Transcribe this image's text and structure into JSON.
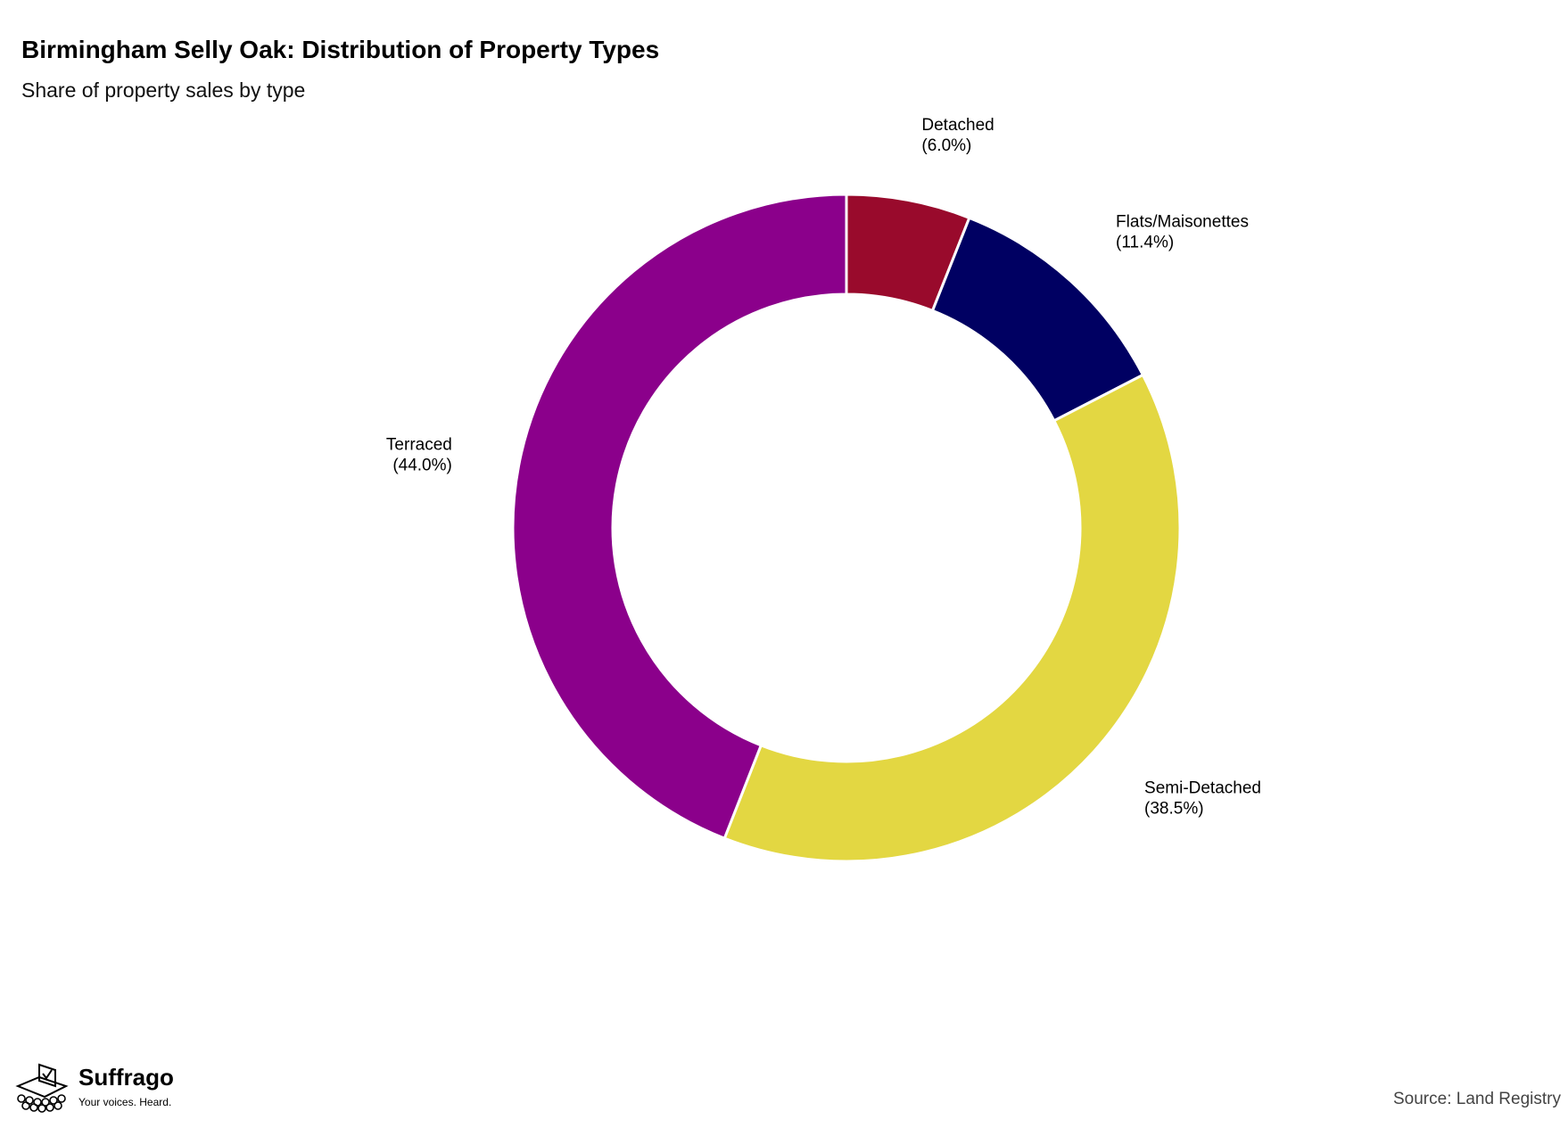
{
  "chart_data": {
    "type": "pie",
    "title": "Birmingham Selly Oak: Distribution of Property Types",
    "subtitle": "Share of property sales by type",
    "categories": [
      "Detached",
      "Flats/Maisonettes",
      "Semi-Detached",
      "Terraced"
    ],
    "values": [
      6.0,
      11.4,
      38.5,
      44.0
    ],
    "labels": [
      "(6.0%)",
      "(11.4%)",
      "(38.5%)",
      "(44.0%)"
    ],
    "colors": [
      "#990a2c",
      "#000062",
      "#e3d742",
      "#8b008b"
    ],
    "donut": true,
    "legend": "none"
  },
  "branding": {
    "name": "Suffrago",
    "tagline": "Your voices. Heard.",
    "logo_icon": "ballot-box-icon"
  },
  "source": "Source: Land Registry"
}
